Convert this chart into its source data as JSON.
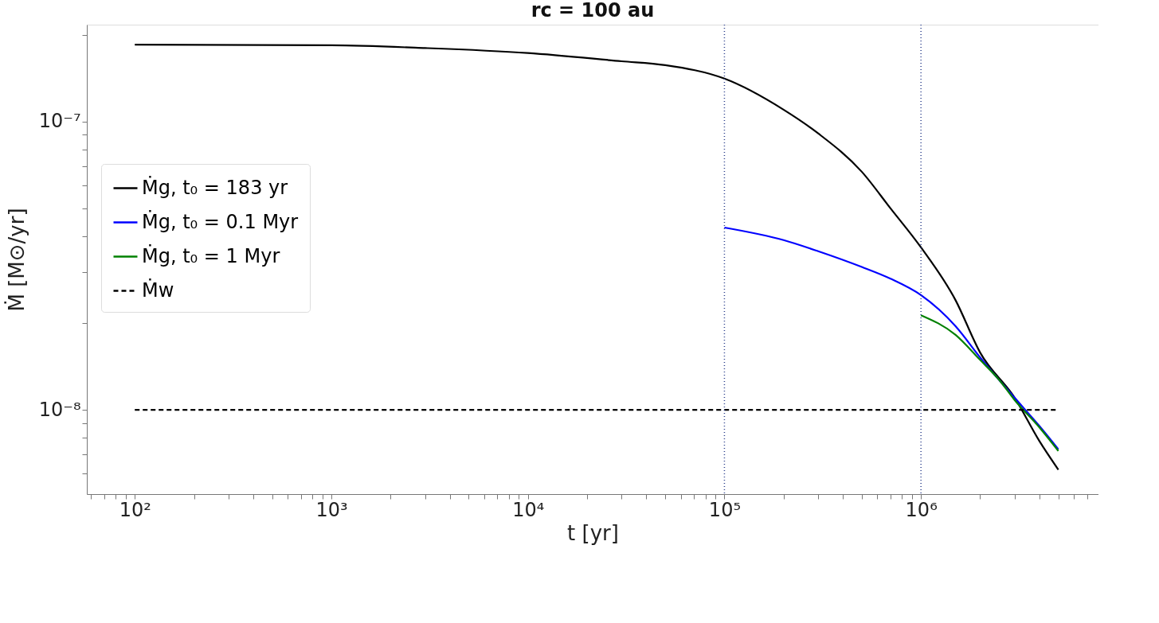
{
  "chart_data": {
    "type": "line",
    "title": "rc = 100 au",
    "xlabel": "t [yr]",
    "ylabel": "Ṁ [M⊙/yr]",
    "log": "xy",
    "grid": false,
    "legend": "left",
    "marker": "none",
    "xlim": [
      57,
      8000000
    ],
    "ylim": [
      5.1e-09,
      2.17e-07
    ],
    "xticks": [
      {
        "value": 60,
        "label": null
      },
      {
        "value": 70,
        "label": null
      },
      {
        "value": 80,
        "label": null
      },
      {
        "value": 90,
        "label": null
      },
      {
        "value": 100,
        "label": "10²"
      },
      {
        "value": 200,
        "label": null
      },
      {
        "value": 300,
        "label": null
      },
      {
        "value": 400,
        "label": null
      },
      {
        "value": 500,
        "label": null
      },
      {
        "value": 600,
        "label": null
      },
      {
        "value": 700,
        "label": null
      },
      {
        "value": 800,
        "label": null
      },
      {
        "value": 900,
        "label": null
      },
      {
        "value": 1000,
        "label": "10³"
      },
      {
        "value": 2000,
        "label": null
      },
      {
        "value": 3000,
        "label": null
      },
      {
        "value": 4000,
        "label": null
      },
      {
        "value": 5000,
        "label": null
      },
      {
        "value": 6000,
        "label": null
      },
      {
        "value": 7000,
        "label": null
      },
      {
        "value": 8000,
        "label": null
      },
      {
        "value": 9000,
        "label": null
      },
      {
        "value": 10000,
        "label": "10⁴"
      },
      {
        "value": 20000,
        "label": null
      },
      {
        "value": 30000,
        "label": null
      },
      {
        "value": 40000,
        "label": null
      },
      {
        "value": 50000,
        "label": null
      },
      {
        "value": 60000,
        "label": null
      },
      {
        "value": 70000,
        "label": null
      },
      {
        "value": 80000,
        "label": null
      },
      {
        "value": 90000,
        "label": null
      },
      {
        "value": 100000,
        "label": "10⁵"
      },
      {
        "value": 200000,
        "label": null
      },
      {
        "value": 300000,
        "label": null
      },
      {
        "value": 400000,
        "label": null
      },
      {
        "value": 500000,
        "label": null
      },
      {
        "value": 600000,
        "label": null
      },
      {
        "value": 700000,
        "label": null
      },
      {
        "value": 800000,
        "label": null
      },
      {
        "value": 900000,
        "label": null
      },
      {
        "value": 1000000,
        "label": "10⁶"
      },
      {
        "value": 2000000,
        "label": null
      },
      {
        "value": 3000000,
        "label": null
      },
      {
        "value": 4000000,
        "label": null
      },
      {
        "value": 5000000,
        "label": null
      },
      {
        "value": 6000000,
        "label": null
      },
      {
        "value": 7000000,
        "label": null
      }
    ],
    "yticks": [
      {
        "value": 6e-09,
        "label": null
      },
      {
        "value": 7e-09,
        "label": null
      },
      {
        "value": 8e-09,
        "label": null
      },
      {
        "value": 9e-09,
        "label": null
      },
      {
        "value": 1e-08,
        "label": "10⁻⁸"
      },
      {
        "value": 2e-08,
        "label": null
      },
      {
        "value": 3e-08,
        "label": null
      },
      {
        "value": 4e-08,
        "label": null
      },
      {
        "value": 5e-08,
        "label": null
      },
      {
        "value": 6e-08,
        "label": null
      },
      {
        "value": 7e-08,
        "label": null
      },
      {
        "value": 8e-08,
        "label": null
      },
      {
        "value": 9e-08,
        "label": null
      },
      {
        "value": 1e-07,
        "label": "10⁻⁷"
      },
      {
        "value": 2e-07,
        "label": null
      }
    ],
    "ref_lines": [
      {
        "axis": "x",
        "value": 100000,
        "color": "#2b3f8c",
        "line_style": "dotted"
      },
      {
        "axis": "x",
        "value": 1000000,
        "color": "#2b3f8c",
        "line_style": "dotted"
      }
    ],
    "series": [
      {
        "name": "Ṁg, t₀ = 183 yr",
        "color": "#000000",
        "line_style": "solid",
        "x": [
          100,
          1000,
          3000,
          10000,
          30000,
          50000,
          100000,
          200000,
          300000,
          500000,
          700000,
          1000000,
          1500000,
          2000000,
          3000000,
          4000000,
          5000000
        ],
        "values": [
          1.85e-07,
          1.84e-07,
          1.8e-07,
          1.73e-07,
          1.62e-07,
          1.57e-07,
          1.41e-07,
          1.1e-07,
          9.1e-08,
          6.7e-08,
          5e-08,
          3.66e-08,
          2.4e-08,
          1.58e-08,
          1.1e-08,
          7.8e-09,
          6.2e-09
        ]
      },
      {
        "name": "Ṁg, t₀ = 0.1 Myr",
        "color": "#0000ff",
        "line_style": "solid",
        "x": [
          100000,
          200000,
          300000,
          500000,
          700000,
          1000000,
          1500000,
          2000000,
          3000000,
          4000000,
          5000000
        ],
        "values": [
          4.29e-08,
          3.88e-08,
          3.55e-08,
          3.13e-08,
          2.85e-08,
          2.5e-08,
          1.95e-08,
          1.52e-08,
          1.1e-08,
          8.8e-09,
          7.3e-09
        ]
      },
      {
        "name": "Ṁg, t₀ = 1 Myr",
        "color": "#008000",
        "line_style": "solid",
        "x": [
          1000000,
          1500000,
          2000000,
          2500000,
          3000000,
          4000000,
          5000000
        ],
        "values": [
          2.13e-08,
          1.82e-08,
          1.49e-08,
          1.27e-08,
          1.08e-08,
          8.7e-09,
          7.2e-09
        ]
      },
      {
        "name": "Ṁw",
        "color": "#000000",
        "line_style": "dashed",
        "x": [
          100,
          5000000
        ],
        "values": [
          1e-08,
          1e-08
        ]
      }
    ]
  }
}
